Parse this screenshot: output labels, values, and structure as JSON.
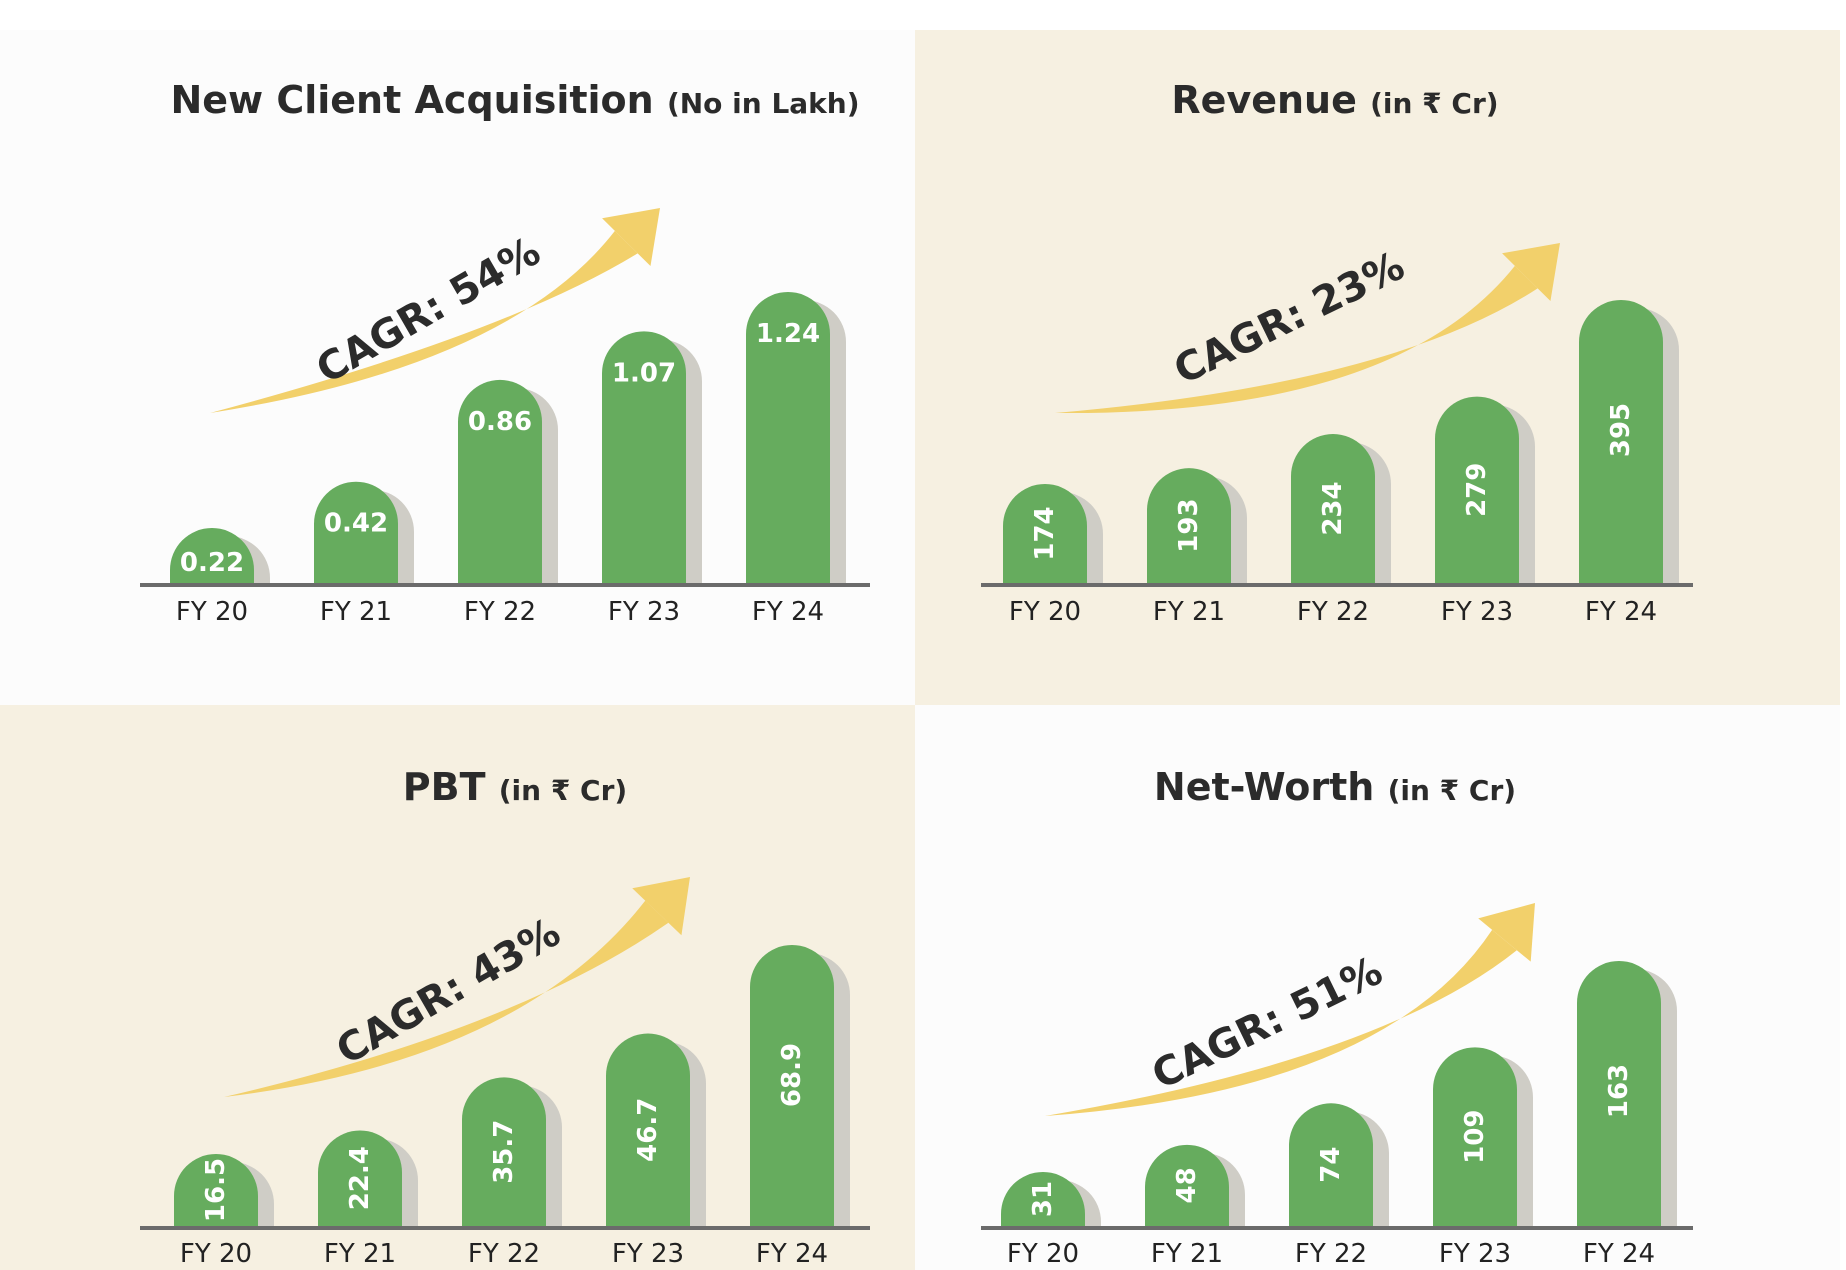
{
  "colors": {
    "bar": "#66ac5e",
    "shadow": "#cfcdc6",
    "arrow": "#f2d06b",
    "axis": "#6b6b6b",
    "panel_cream": "#f6f0e1",
    "panel_white": "#fcfcfc"
  },
  "chart_data": [
    {
      "type": "bar",
      "title": "New Client Acquisition",
      "unit": "(No in Lakh)",
      "cagr": "CAGR: 54%",
      "categories": [
        "FY 20",
        "FY 21",
        "FY 22",
        "FY 23",
        "FY 24"
      ],
      "values": [
        0.22,
        0.42,
        0.86,
        1.07,
        1.24
      ],
      "labels": [
        "0.22",
        "0.42",
        "0.86",
        "1.07",
        "1.24"
      ],
      "value_orientation": "horizontal",
      "background": "white"
    },
    {
      "type": "bar",
      "title": "Revenue",
      "unit": "(in ₹ Cr)",
      "cagr": "CAGR: 23%",
      "categories": [
        "FY 20",
        "FY 21",
        "FY 22",
        "FY 23",
        "FY 24"
      ],
      "values": [
        174,
        193,
        234,
        279,
        395
      ],
      "labels": [
        "174",
        "193",
        "234",
        "279",
        "395"
      ],
      "value_orientation": "vertical",
      "background": "cream"
    },
    {
      "type": "bar",
      "title": "PBT",
      "unit": "(in ₹ Cr)",
      "cagr": "CAGR: 43%",
      "categories": [
        "FY 20",
        "FY 21",
        "FY 22",
        "FY 23",
        "FY 24"
      ],
      "values": [
        16.5,
        22.4,
        35.7,
        46.7,
        68.9
      ],
      "labels": [
        "16.5",
        "22.4",
        "35.7",
        "46.7",
        "68.9"
      ],
      "value_orientation": "vertical",
      "background": "cream"
    },
    {
      "type": "bar",
      "title": "Net-Worth",
      "unit": "(in ₹ Cr)",
      "cagr": "CAGR: 51%",
      "categories": [
        "FY 20",
        "FY 21",
        "FY 22",
        "FY 23",
        "FY 24"
      ],
      "values": [
        31,
        48,
        74,
        109,
        163
      ],
      "labels": [
        "31",
        "48",
        "74",
        "109",
        "163"
      ],
      "value_orientation": "vertical",
      "background": "white"
    }
  ]
}
